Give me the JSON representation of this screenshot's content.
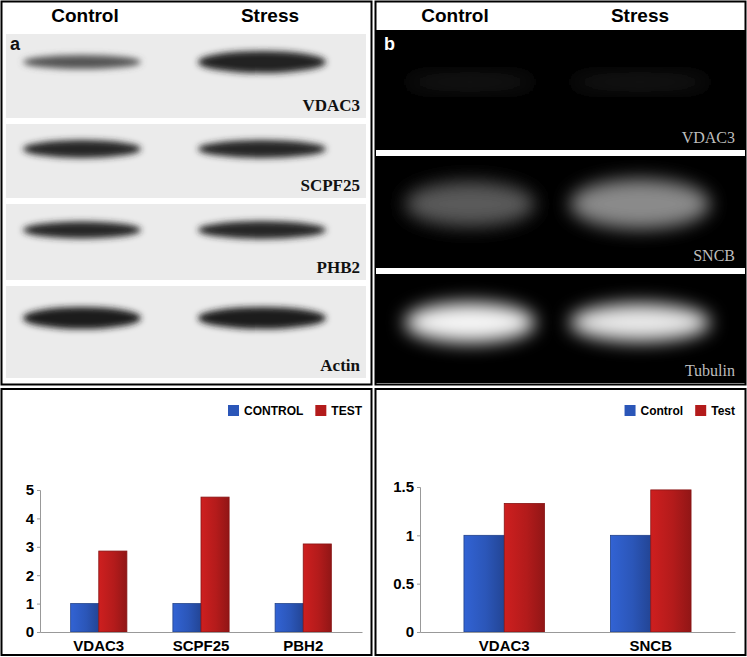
{
  "blots": [
    {
      "panel": "a",
      "lanes": [
        "Control",
        "Stress"
      ],
      "bands": [
        "VDAC3",
        "SCPF25",
        "PHB2",
        "Actin"
      ]
    },
    {
      "panel": "b",
      "lanes": [
        "Control",
        "Stress"
      ],
      "bands": [
        "VDAC3",
        "SNCB",
        "Tubulin"
      ]
    }
  ],
  "chart_data": [
    {
      "type": "bar",
      "categories": [
        "VDAC3",
        "SCPF25",
        "PBH2"
      ],
      "series": [
        {
          "name": "CONTROL",
          "color": "#2b56b8",
          "values": [
            1,
            1,
            1
          ]
        },
        {
          "name": "TEST",
          "color": "#b31b1b",
          "values": [
            2.85,
            4.75,
            3.1
          ]
        }
      ],
      "ylim": [
        0,
        5
      ],
      "yticks": [
        0,
        1,
        2,
        3,
        4,
        5
      ],
      "grid": false,
      "legend": "top-right"
    },
    {
      "type": "bar",
      "categories": [
        "VDAC3",
        "SNCB"
      ],
      "series": [
        {
          "name": "Control",
          "color": "#2b56b8",
          "values": [
            1,
            1
          ]
        },
        {
          "name": "Test",
          "color": "#b31b1b",
          "values": [
            1.33,
            1.47
          ]
        }
      ],
      "ylim": [
        0,
        1.5
      ],
      "yticks": [
        0,
        0.5,
        1,
        1.5
      ],
      "grid": false,
      "legend": "top-right"
    }
  ]
}
